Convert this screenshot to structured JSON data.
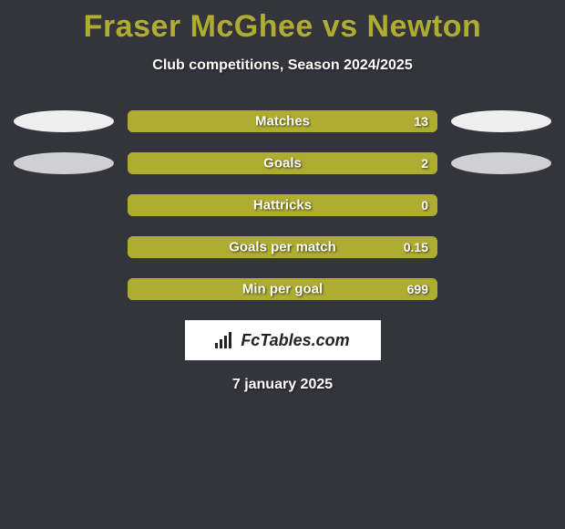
{
  "title": "Fraser McGhee vs Newton",
  "subtitle": "Club competitions, Season 2024/2025",
  "date": "7 january 2025",
  "logo_text": "FcTables.com",
  "colors": {
    "background": "#34343c",
    "accent": "#afad31",
    "bar_fill": "#afad31",
    "bar_border": "#afad31",
    "text": "#ffffff",
    "ellipse_light": "#efefef",
    "ellipse_dark": "#cfcfd4"
  },
  "typography": {
    "title_fontsize": 34,
    "subtitle_fontsize": 16,
    "label_fontsize": 15,
    "value_fontsize": 14
  },
  "rows": [
    {
      "label": "Matches",
      "value": "13",
      "fill_side": "left",
      "fill_pct": 100,
      "left_ellipse": "#efefef",
      "right_ellipse": "#efefef"
    },
    {
      "label": "Goals",
      "value": "2",
      "fill_side": "left",
      "fill_pct": 100,
      "left_ellipse": "#cfcfd4",
      "right_ellipse": "#cfcfd4"
    },
    {
      "label": "Hattricks",
      "value": "0",
      "fill_side": "right",
      "fill_pct": 100,
      "left_ellipse": null,
      "right_ellipse": null
    },
    {
      "label": "Goals per match",
      "value": "0.15",
      "fill_side": "right",
      "fill_pct": 100,
      "left_ellipse": null,
      "right_ellipse": null
    },
    {
      "label": "Min per goal",
      "value": "699",
      "fill_side": "right",
      "fill_pct": 100,
      "left_ellipse": null,
      "right_ellipse": null
    }
  ]
}
